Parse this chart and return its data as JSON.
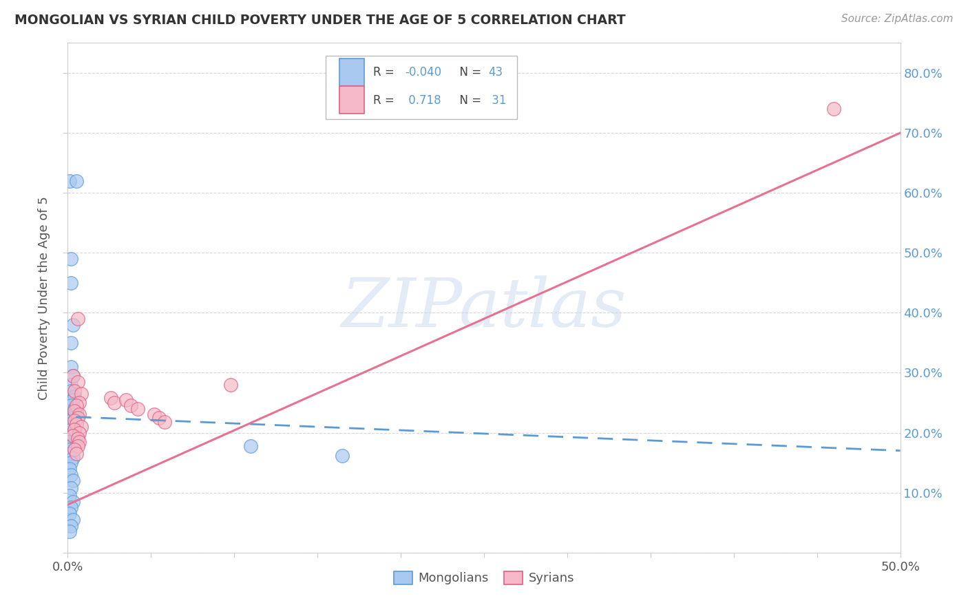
{
  "title": "MONGOLIAN VS SYRIAN CHILD POVERTY UNDER THE AGE OF 5 CORRELATION CHART",
  "source": "Source: ZipAtlas.com",
  "ylabel": "Child Poverty Under the Age of 5",
  "mongolian_color": "#a8c8f0",
  "mongolian_edge": "#5b9bd5",
  "syrian_color": "#f4b8c8",
  "syrian_edge": "#e06080",
  "mongolian_line_color": "#5b9bd5",
  "syrian_line_color": "#e87090",
  "watermark_text": "ZIPatlas",
  "background_color": "#ffffff",
  "grid_color": "#cccccc",
  "mongolian_scatter": [
    [
      0.001,
      0.62
    ],
    [
      0.005,
      0.62
    ],
    [
      0.002,
      0.49
    ],
    [
      0.002,
      0.45
    ],
    [
      0.003,
      0.38
    ],
    [
      0.002,
      0.35
    ],
    [
      0.002,
      0.31
    ],
    [
      0.003,
      0.295
    ],
    [
      0.002,
      0.28
    ],
    [
      0.002,
      0.27
    ],
    [
      0.004,
      0.26
    ],
    [
      0.003,
      0.255
    ],
    [
      0.002,
      0.245
    ],
    [
      0.004,
      0.24
    ],
    [
      0.005,
      0.235
    ],
    [
      0.004,
      0.23
    ],
    [
      0.003,
      0.225
    ],
    [
      0.002,
      0.22
    ],
    [
      0.001,
      0.215
    ],
    [
      0.001,
      0.21
    ],
    [
      0.002,
      0.205
    ],
    [
      0.003,
      0.2
    ],
    [
      0.002,
      0.195
    ],
    [
      0.004,
      0.19
    ],
    [
      0.001,
      0.185
    ],
    [
      0.002,
      0.178
    ],
    [
      0.001,
      0.172
    ],
    [
      0.001,
      0.165
    ],
    [
      0.003,
      0.158
    ],
    [
      0.002,
      0.15
    ],
    [
      0.001,
      0.14
    ],
    [
      0.002,
      0.13
    ],
    [
      0.003,
      0.12
    ],
    [
      0.002,
      0.108
    ],
    [
      0.001,
      0.095
    ],
    [
      0.003,
      0.085
    ],
    [
      0.002,
      0.075
    ],
    [
      0.001,
      0.065
    ],
    [
      0.003,
      0.055
    ],
    [
      0.002,
      0.045
    ],
    [
      0.001,
      0.035
    ],
    [
      0.11,
      0.178
    ],
    [
      0.165,
      0.162
    ]
  ],
  "syrian_scatter": [
    [
      0.006,
      0.39
    ],
    [
      0.003,
      0.295
    ],
    [
      0.006,
      0.285
    ],
    [
      0.004,
      0.27
    ],
    [
      0.008,
      0.265
    ],
    [
      0.007,
      0.25
    ],
    [
      0.005,
      0.245
    ],
    [
      0.004,
      0.236
    ],
    [
      0.007,
      0.23
    ],
    [
      0.006,
      0.225
    ],
    [
      0.004,
      0.22
    ],
    [
      0.005,
      0.215
    ],
    [
      0.008,
      0.21
    ],
    [
      0.004,
      0.205
    ],
    [
      0.007,
      0.2
    ],
    [
      0.003,
      0.195
    ],
    [
      0.006,
      0.19
    ],
    [
      0.007,
      0.185
    ],
    [
      0.006,
      0.178
    ],
    [
      0.004,
      0.172
    ],
    [
      0.005,
      0.165
    ],
    [
      0.026,
      0.258
    ],
    [
      0.028,
      0.25
    ],
    [
      0.035,
      0.255
    ],
    [
      0.038,
      0.245
    ],
    [
      0.042,
      0.24
    ],
    [
      0.052,
      0.23
    ],
    [
      0.055,
      0.225
    ],
    [
      0.058,
      0.218
    ],
    [
      0.098,
      0.28
    ],
    [
      0.46,
      0.74
    ]
  ],
  "mon_line": [
    [
      -0.01,
      0.228
    ],
    [
      0.5,
      0.17
    ]
  ],
  "syr_line": [
    [
      0.0,
      0.08
    ],
    [
      0.5,
      0.7
    ]
  ],
  "xlim": [
    0.0,
    0.5
  ],
  "ylim": [
    0.0,
    0.85
  ],
  "xtick_vals": [
    0.0,
    0.05,
    0.1,
    0.15,
    0.2,
    0.25,
    0.3,
    0.35,
    0.4,
    0.45,
    0.5
  ],
  "ytick_vals": [
    0.0,
    0.1,
    0.2,
    0.3,
    0.4,
    0.5,
    0.6,
    0.7,
    0.8
  ]
}
